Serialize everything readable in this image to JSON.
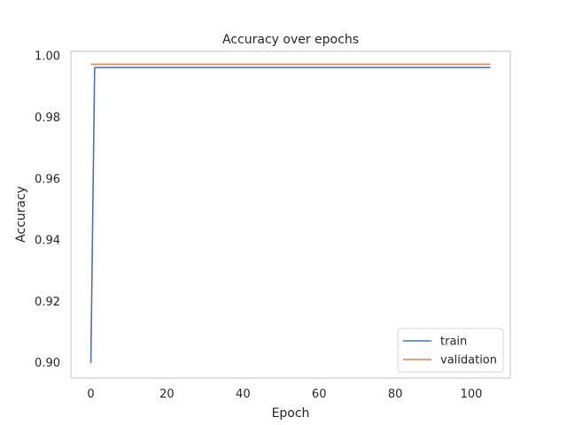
{
  "chart_data": {
    "type": "line",
    "title": "Accuracy over epochs",
    "xlabel": "Epoch",
    "ylabel": "Accuracy",
    "xlim": [
      -5.25,
      110.25
    ],
    "ylim": [
      0.895,
      1.0015
    ],
    "xticks": [
      0,
      20,
      40,
      60,
      80,
      100
    ],
    "xtick_labels": [
      "0",
      "20",
      "40",
      "60",
      "80",
      "100"
    ],
    "yticks": [
      0.9,
      0.92,
      0.94,
      0.96,
      0.98,
      1.0
    ],
    "ytick_labels": [
      "0.90",
      "0.92",
      "0.94",
      "0.96",
      "0.98",
      "1.00"
    ],
    "grid": false,
    "legend_position": "lower-right",
    "series": [
      {
        "name": "train",
        "color": "#4c72b0",
        "x": [
          0,
          1,
          105
        ],
        "y": [
          0.8999,
          0.9962,
          0.9962
        ]
      },
      {
        "name": "validation",
        "color": "#dd8452",
        "x": [
          0,
          105
        ],
        "y": [
          0.9973,
          0.9973
        ]
      }
    ]
  }
}
